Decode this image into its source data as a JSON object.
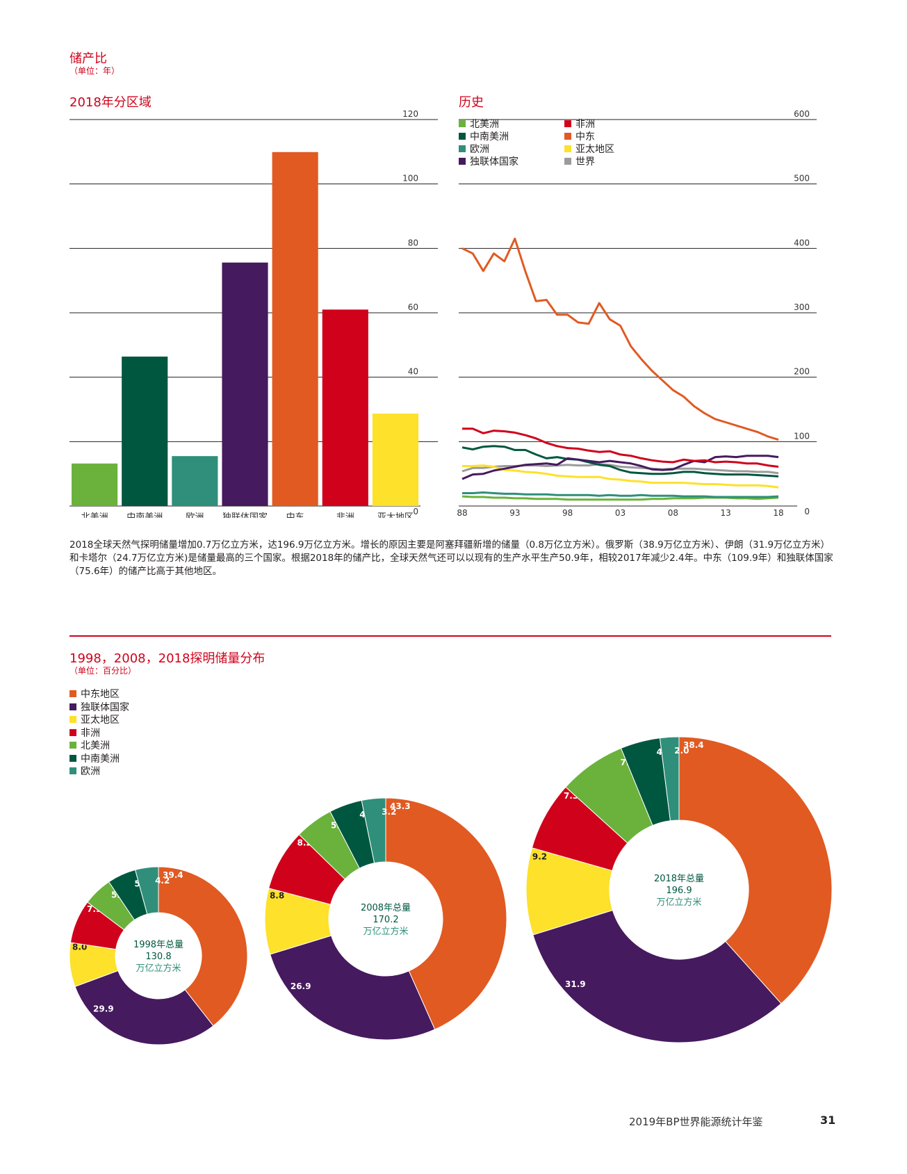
{
  "section1": {
    "title": "储产比",
    "unit": "（单位：年）",
    "left_title": "2018年分区域",
    "right_title": "历史"
  },
  "section2": {
    "title": "1998，2008，2018探明储量分布",
    "unit": "（单位：百分比）"
  },
  "paragraph": "2018全球天然气探明储量增加0.7万亿立方米，达196.9万亿立方米。增长的原因主要是阿塞拜疆新增的储量（0.8万亿立方米）。俄罗斯（38.9万亿立方米）、伊朗（31.9万亿立方米）和卡塔尔（24.7万亿立方米)是储量最高的三个国家。根据2018年的储产比，全球天然气还可以以现有的生产水平生产50.9年，相较2017年减少2.4年。中东（109.9年）和独联体国家（75.6年）的储产比高于其他地区。",
  "footer": {
    "publication": "2019年BP世界能源统计年鉴",
    "page_number": "31"
  },
  "colors": {
    "north_america": "#6ab23c",
    "south_central_america": "#00573f",
    "europe": "#2f8f7a",
    "cis": "#461a5e",
    "middle_east": "#e05a22",
    "africa": "#d0021b",
    "asia_pacific": "#fde12a",
    "world": "#9b9b9b",
    "title_red": "#d0021b"
  },
  "chart_data": [
    {
      "type": "bar",
      "title": "2018年分区域",
      "categories": [
        "北美洲",
        "中南美洲",
        "欧洲",
        "独联体国家",
        "中东",
        "非洲",
        "亚太地区"
      ],
      "values": [
        13.2,
        46.4,
        15.5,
        75.6,
        109.9,
        61.0,
        28.7
      ],
      "ylim": [
        0,
        120
      ],
      "yticks": [
        0,
        20,
        40,
        60,
        80,
        100,
        120
      ],
      "grid": true
    },
    {
      "type": "line",
      "title": "历史",
      "x": [
        1988,
        1989,
        1990,
        1991,
        1992,
        1993,
        1994,
        1995,
        1996,
        1997,
        1998,
        1999,
        2000,
        2001,
        2002,
        2003,
        2004,
        2005,
        2006,
        2007,
        2008,
        2009,
        2010,
        2011,
        2012,
        2013,
        2014,
        2015,
        2016,
        2017,
        2018
      ],
      "xticks": [
        1988,
        1993,
        1998,
        2003,
        2008,
        2013,
        2018
      ],
      "xtick_labels": [
        "88",
        "93",
        "98",
        "03",
        "08",
        "13",
        "18"
      ],
      "ylim": [
        0,
        600
      ],
      "yticks": [
        0,
        100,
        200,
        300,
        400,
        500,
        600
      ],
      "legend": [
        "北美洲",
        "中南美洲",
        "欧洲",
        "独联体国家",
        "非洲",
        "中东",
        "亚太地区",
        "世界"
      ],
      "series": [
        {
          "name": "北美洲",
          "color_key": "north_america",
          "values": [
            15,
            14,
            14,
            13,
            13,
            12,
            12,
            11,
            11,
            11,
            10,
            10,
            10,
            10,
            10,
            10,
            10,
            10,
            11,
            11,
            12,
            12,
            12,
            13,
            13,
            13,
            12,
            12,
            11,
            12,
            13
          ]
        },
        {
          "name": "中南美洲",
          "color_key": "south_central_america",
          "values": [
            91,
            88,
            92,
            93,
            92,
            87,
            87,
            80,
            74,
            76,
            73,
            72,
            68,
            64,
            62,
            56,
            52,
            51,
            50,
            50,
            51,
            53,
            53,
            51,
            50,
            49,
            49,
            49,
            48,
            47,
            46
          ]
        },
        {
          "name": "欧洲",
          "color_key": "europe",
          "values": [
            20,
            20,
            21,
            20,
            19,
            19,
            18,
            18,
            18,
            17,
            17,
            17,
            17,
            16,
            17,
            16,
            16,
            17,
            16,
            16,
            16,
            15,
            15,
            15,
            14,
            14,
            14,
            14,
            14,
            14,
            15
          ]
        },
        {
          "name": "独联体国家",
          "color_key": "cis",
          "values": [
            42,
            49,
            50,
            55,
            58,
            61,
            64,
            65,
            66,
            64,
            74,
            72,
            70,
            68,
            70,
            68,
            66,
            62,
            57,
            56,
            57,
            64,
            70,
            68,
            76,
            77,
            76,
            78,
            78,
            78,
            76
          ]
        },
        {
          "name": "非洲",
          "color_key": "africa",
          "values": [
            120,
            120,
            113,
            117,
            116,
            114,
            110,
            105,
            98,
            93,
            90,
            89,
            86,
            84,
            85,
            80,
            78,
            74,
            71,
            69,
            68,
            72,
            70,
            71,
            68,
            69,
            68,
            66,
            66,
            63,
            61
          ]
        },
        {
          "name": "中东",
          "color_key": "middle_east",
          "values": [
            400,
            392,
            365,
            392,
            380,
            415,
            364,
            318,
            320,
            297,
            297,
            285,
            283,
            315,
            290,
            280,
            248,
            228,
            210,
            195,
            180,
            170,
            155,
            144,
            135,
            130,
            125,
            120,
            115,
            108,
            103
          ]
        },
        {
          "name": "亚太地区",
          "color_key": "asia_pacific",
          "values": [
            62,
            62,
            63,
            61,
            56,
            55,
            53,
            52,
            50,
            47,
            46,
            45,
            45,
            45,
            42,
            41,
            39,
            38,
            36,
            36,
            36,
            36,
            35,
            34,
            34,
            33,
            32,
            32,
            32,
            31,
            29
          ]
        },
        {
          "name": "世界",
          "color_key": "world",
          "values": [
            54,
            59,
            59,
            61,
            62,
            62,
            63,
            63,
            62,
            63,
            64,
            63,
            63,
            65,
            64,
            61,
            60,
            59,
            58,
            57,
            58,
            58,
            58,
            57,
            56,
            55,
            54,
            54,
            53,
            53,
            51
          ]
        }
      ]
    },
    {
      "type": "pie",
      "title": "1998年总量",
      "total_value": "130.8",
      "total_unit": "万亿立方米",
      "labels": [
        "中东地区",
        "独联体国家",
        "亚太地区",
        "非洲",
        "北美洲",
        "中南美洲",
        "欧洲"
      ],
      "values": [
        39.4,
        29.9,
        8.0,
        7.9,
        5.3,
        5.2,
        4.2
      ]
    },
    {
      "type": "pie",
      "title": "2008年总量",
      "total_value": "170.2",
      "total_unit": "万亿立方米",
      "labels": [
        "中东地区",
        "独联体国家",
        "亚太地区",
        "非洲",
        "北美洲",
        "中南美洲",
        "欧洲"
      ],
      "values": [
        43.3,
        26.9,
        8.8,
        8.2,
        5.1,
        4.4,
        3.2
      ]
    },
    {
      "type": "pie",
      "title": "2018年总量",
      "total_value": "196.9",
      "total_unit": "万亿立方米",
      "labels": [
        "中东地区",
        "独联体国家",
        "亚太地区",
        "非洲",
        "北美洲",
        "中南美洲",
        "欧洲"
      ],
      "values": [
        38.4,
        31.9,
        9.2,
        7.3,
        7.1,
        4.2,
        2.0
      ]
    }
  ],
  "pie_legend": [
    "中东地区",
    "独联体国家",
    "亚太地区",
    "非洲",
    "北美洲",
    "中南美洲",
    "欧洲"
  ]
}
